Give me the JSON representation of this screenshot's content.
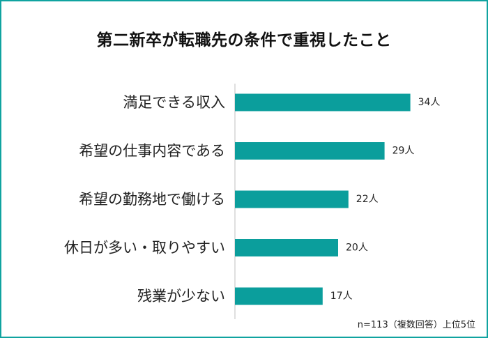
{
  "chart_data": {
    "type": "bar",
    "orientation": "horizontal",
    "title": "第二新卒が転職先の条件で重視したこと",
    "categories": [
      "満足できる収入",
      "希望の仕事内容である",
      "希望の勤務地で働ける",
      "休日が多い・取りやすい",
      "残業が少ない"
    ],
    "values": [
      34,
      29,
      22,
      20,
      17
    ],
    "value_labels": [
      "34人",
      "29人",
      "22人",
      "20人",
      "17人"
    ],
    "xlim": [
      0,
      40
    ],
    "grid": false,
    "bar_color": "#0b9e9c",
    "note": "n=113（複数回答）上位5位"
  }
}
